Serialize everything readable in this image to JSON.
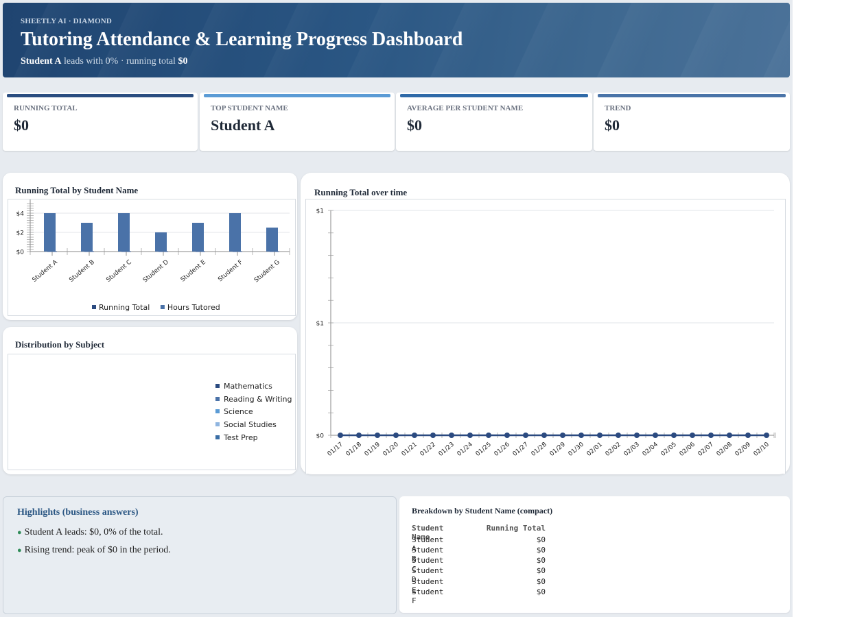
{
  "header": {
    "brand": "SHEETLY AI · DIAMOND",
    "title": "Tutoring Attendance & Learning Progress Dashboard",
    "subtitle_lead": "Student A",
    "subtitle_mid": " leads with 0% · running total ",
    "subtitle_total": "$0"
  },
  "kpis": [
    {
      "label": "RUNNING TOTAL",
      "value": "$0",
      "color": "#2a4d80"
    },
    {
      "label": "TOP STUDENT NAME",
      "value": "Student A",
      "color": "#5b9bd5"
    },
    {
      "label": "AVERAGE PER STUDENT NAME",
      "value": "$0",
      "color": "#2f6aa8"
    },
    {
      "label": "TREND",
      "value": "$0",
      "color": "#4a74a8"
    }
  ],
  "bar_card": {
    "title": "Running Total by Student Name"
  },
  "line_card": {
    "title": "Running Total over time"
  },
  "pie_card": {
    "title": "Distribution by Subject",
    "legend": [
      {
        "label": "Mathematics",
        "color": "#2b4a80"
      },
      {
        "label": "Reading & Writing",
        "color": "#4a72a8"
      },
      {
        "label": "Science",
        "color": "#5b9bd5"
      },
      {
        "label": "Social Studies",
        "color": "#8fb5e0"
      },
      {
        "label": "Test Prep",
        "color": "#3a6ea5"
      }
    ]
  },
  "chart_data": [
    {
      "type": "bar",
      "title": "Running Total by Student Name",
      "categories": [
        "Student A",
        "Student B",
        "Student C",
        "Student D",
        "Student E",
        "Student F",
        "Student G"
      ],
      "series": [
        {
          "name": "Running Total",
          "values": [
            0,
            0,
            0,
            0,
            0,
            0,
            0
          ],
          "color": "#2b4a80"
        },
        {
          "name": "Hours Tutored",
          "values": [
            4,
            3,
            4,
            2,
            3,
            4,
            2.5
          ],
          "color": "#4a72a8"
        }
      ],
      "yticks": [
        "$0",
        "$2",
        "$4"
      ],
      "ylim": [
        0,
        5
      ],
      "legend": "bottom"
    },
    {
      "type": "line",
      "title": "Running Total over time",
      "x": [
        "01/17",
        "01/18",
        "01/19",
        "01/20",
        "01/21",
        "01/22",
        "01/23",
        "01/24",
        "01/25",
        "01/26",
        "01/27",
        "01/28",
        "01/29",
        "01/30",
        "02/01",
        "02/02",
        "02/03",
        "02/04",
        "02/05",
        "02/06",
        "02/07",
        "02/08",
        "02/09",
        "02/10"
      ],
      "series": [
        {
          "values": [
            0,
            0,
            0,
            0,
            0,
            0,
            0,
            0,
            0,
            0,
            0,
            0,
            0,
            0,
            0,
            0,
            0,
            0,
            0,
            0,
            0,
            0,
            0,
            0
          ],
          "color": "#2b4a80"
        }
      ],
      "yticks": [
        "$0",
        "$1",
        "$1"
      ],
      "ylim": [
        0,
        1
      ],
      "grid": true
    }
  ],
  "highlights": {
    "title": "Highlights (business answers)",
    "items": [
      "Student A leads: $0, 0% of the total.",
      "Rising trend: peak of $0 in the period."
    ],
    "bullet": "●"
  },
  "breakdown": {
    "title": "Breakdown by Student Name (compact)",
    "headers": [
      "Student Name",
      "Running Total"
    ],
    "rows": [
      [
        "Student A",
        "$0"
      ],
      [
        "Student B",
        "$0"
      ],
      [
        "Student C",
        "$0"
      ],
      [
        "Student D",
        "$0"
      ],
      [
        "Student E",
        "$0"
      ],
      [
        "Student F",
        "$0"
      ]
    ]
  }
}
